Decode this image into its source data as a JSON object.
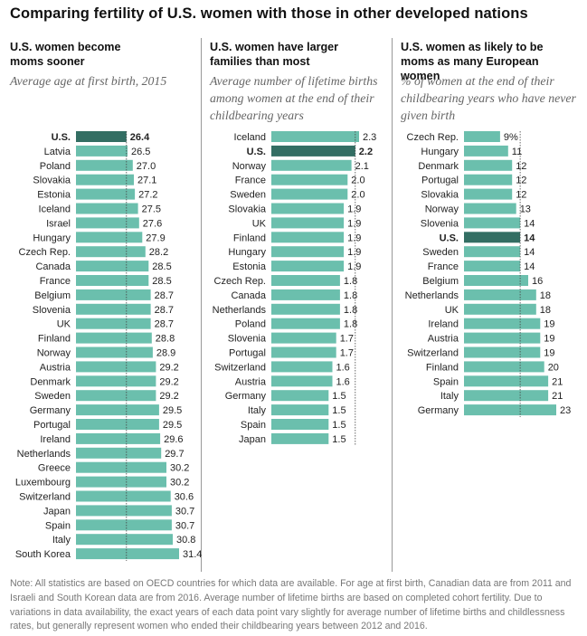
{
  "title": "Comparing fertility of U.S. women with those in other developed nations",
  "panels": [
    {
      "header": "U.S. women become moms sooner",
      "subtitle": "Average age at first birth, 2015"
    },
    {
      "header": "U.S. women have larger families than most",
      "subtitle": "Average number of lifetime births among women at the end of their childbearing years"
    },
    {
      "header": "U.S. women as likely to be moms as many European women",
      "subtitle": "% of women at the end of their childbearing years who have never given birth"
    }
  ],
  "note": "Note: All statistics are based on OECD countries for which data are available. For age at first birth, Canadian data are from 2011 and Israeli and South Korean data are from 2016. Average number of lifetime births are based on completed cohort fertility. Due to variations in data availability, the exact years of each data point vary slightly for average number of lifetime births and childlessness rates, but generally represent women who ended their childbearing years between 2012 and 2016.",
  "colors": {
    "bar": "#6bbfad",
    "highlight": "#336e63"
  },
  "chart_data": [
    {
      "type": "bar",
      "orientation": "horizontal",
      "title": "Average age at first birth, 2015",
      "highlight": "U.S.",
      "categories": [
        "U.S.",
        "Latvia",
        "Poland",
        "Slovakia",
        "Estonia",
        "Iceland",
        "Israel",
        "Hungary",
        "Czech Rep.",
        "Canada",
        "France",
        "Belgium",
        "Slovenia",
        "UK",
        "Finland",
        "Norway",
        "Austria",
        "Denmark",
        "Sweden",
        "Germany",
        "Portugal",
        "Ireland",
        "Netherlands",
        "Greece",
        "Luxembourg",
        "Switzerland",
        "Japan",
        "Spain",
        "Italy",
        "South Korea"
      ],
      "values": [
        26.4,
        26.5,
        27.0,
        27.1,
        27.2,
        27.5,
        27.6,
        27.9,
        28.2,
        28.5,
        28.5,
        28.7,
        28.7,
        28.7,
        28.8,
        28.9,
        29.2,
        29.2,
        29.2,
        29.5,
        29.5,
        29.6,
        29.7,
        30.2,
        30.2,
        30.6,
        30.7,
        30.7,
        30.8,
        31.4
      ],
      "labels": [
        "26.4",
        "26.5",
        "27.0",
        "27.1",
        "27.2",
        "27.5",
        "27.6",
        "27.9",
        "28.2",
        "28.5",
        "28.5",
        "28.7",
        "28.7",
        "28.7",
        "28.8",
        "28.9",
        "29.2",
        "29.2",
        "29.2",
        "29.5",
        "29.5",
        "29.6",
        "29.7",
        "30.2",
        "30.2",
        "30.6",
        "30.7",
        "30.7",
        "30.8",
        "31.4"
      ],
      "xlim": [
        21.6,
        31.4
      ]
    },
    {
      "type": "bar",
      "orientation": "horizontal",
      "title": "Average number of lifetime births among women at the end of their childbearing years",
      "highlight": "U.S.",
      "categories": [
        "Iceland",
        "U.S.",
        "Norway",
        "France",
        "Sweden",
        "Slovakia",
        "UK",
        "Finland",
        "Hungary",
        "Estonia",
        "Czech Rep.",
        "Canada",
        "Netherlands",
        "Poland",
        "Slovenia",
        "Portugal",
        "Switzerland",
        "Austria",
        "Germany",
        "Italy",
        "Spain",
        "Japan"
      ],
      "values": [
        2.3,
        2.2,
        2.1,
        2.0,
        2.0,
        1.9,
        1.9,
        1.9,
        1.9,
        1.9,
        1.8,
        1.8,
        1.8,
        1.8,
        1.7,
        1.7,
        1.6,
        1.6,
        1.5,
        1.5,
        1.5,
        1.5
      ],
      "labels": [
        "2.3",
        "2.2",
        "2.1",
        "2.0",
        "2.0",
        "1.9",
        "1.9",
        "1.9",
        "1.9",
        "1.9",
        "1.8",
        "1.8",
        "1.8",
        "1.8",
        "1.7",
        "1.7",
        "1.6",
        "1.6",
        "1.5",
        "1.5",
        "1.5",
        "1.5"
      ],
      "xlim": [
        0,
        2.3
      ]
    },
    {
      "type": "bar",
      "orientation": "horizontal",
      "title": "% of women at the end of their childbearing years who have never given birth",
      "highlight": "U.S.",
      "categories": [
        "Czech Rep.",
        "Hungary",
        "Denmark",
        "Portugal",
        "Slovakia",
        "Norway",
        "Slovenia",
        "U.S.",
        "Sweden",
        "France",
        "Belgium",
        "Netherlands",
        "UK",
        "Ireland",
        "Austria",
        "Switzerland",
        "Finland",
        "Spain",
        "Italy",
        "Germany"
      ],
      "values": [
        9,
        11,
        12,
        12,
        12,
        13,
        14,
        14,
        14,
        14,
        16,
        18,
        18,
        19,
        19,
        19,
        20,
        21,
        21,
        23
      ],
      "labels": [
        "9%",
        "11",
        "12",
        "12",
        "12",
        "13",
        "14",
        "14",
        "14",
        "14",
        "16",
        "18",
        "18",
        "19",
        "19",
        "19",
        "20",
        "21",
        "21",
        "23"
      ],
      "xlim": [
        0,
        23
      ]
    }
  ]
}
